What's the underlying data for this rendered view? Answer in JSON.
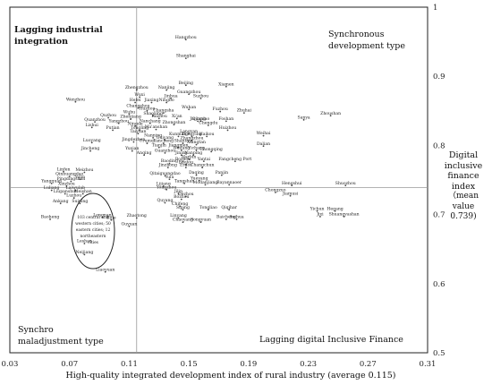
{
  "chart_data": {
    "type": "scatter",
    "x_label": "High-quality integrated development index of rural industry (average 0.115)",
    "y_label_lines": [
      "Digital",
      "inclusive",
      "finance",
      "index"
    ],
    "y_label_note_lines": [
      "（mean",
      "value",
      "0.739)"
    ],
    "x_ticks": [
      "0.03",
      "0.07",
      "0.11",
      "0.15",
      "0.19",
      "0.23",
      "0.27",
      "0.31"
    ],
    "y_ticks": [
      "1",
      "0.9",
      "0.8",
      "0.7",
      "0.6",
      "0.5"
    ],
    "xlim": [
      0.03,
      0.31
    ],
    "ylim": [
      0.5,
      1.0
    ],
    "x_mean": 0.115,
    "y_mean": 0.739,
    "quadrants": {
      "top_left": [
        "Lagging industrial",
        "integration"
      ],
      "top_right": [
        "Synchronous",
        "development type"
      ],
      "bottom_left": [
        "Synchro",
        "maladjustment type"
      ],
      "bottom_right": [
        "Lagging digital Inclusive Finance"
      ]
    },
    "ellipse_note_lines": [
      "103 central and",
      "western cities; 50",
      "eastern cities; 12",
      "northeastern",
      "cities"
    ],
    "points": [
      {
        "name": "Hangzhou",
        "x": 0.148,
        "y": 0.953
      },
      {
        "name": "Shanghai",
        "x": 0.148,
        "y": 0.926
      },
      {
        "name": "Beijing",
        "x": 0.148,
        "y": 0.887
      },
      {
        "name": "Xiamen",
        "x": 0.175,
        "y": 0.885
      },
      {
        "name": "Nanjing",
        "x": 0.135,
        "y": 0.88
      },
      {
        "name": "Zhengzhou",
        "x": 0.115,
        "y": 0.88
      },
      {
        "name": "Guangzhou",
        "x": 0.15,
        "y": 0.874
      },
      {
        "name": "Wuxi",
        "x": 0.117,
        "y": 0.87
      },
      {
        "name": "Jinhua",
        "x": 0.138,
        "y": 0.868
      },
      {
        "name": "Suzhou",
        "x": 0.158,
        "y": 0.868
      },
      {
        "name": "Wenzhou",
        "x": 0.074,
        "y": 0.863
      },
      {
        "name": "Hefei",
        "x": 0.114,
        "y": 0.862
      },
      {
        "name": "Jiaxing",
        "x": 0.125,
        "y": 0.862
      },
      {
        "name": "Ningbo",
        "x": 0.135,
        "y": 0.862
      },
      {
        "name": "Changzhou",
        "x": 0.116,
        "y": 0.854
      },
      {
        "name": "Wuhan",
        "x": 0.15,
        "y": 0.852
      },
      {
        "name": "Fuzhou",
        "x": 0.171,
        "y": 0.849
      },
      {
        "name": "Zhuhai",
        "x": 0.187,
        "y": 0.847
      },
      {
        "name": "Huzhou",
        "x": 0.122,
        "y": 0.85
      },
      {
        "name": "Wuhu",
        "x": 0.11,
        "y": 0.845
      },
      {
        "name": "Changsha",
        "x": 0.133,
        "y": 0.847
      },
      {
        "name": "Shaoxing",
        "x": 0.126,
        "y": 0.843
      },
      {
        "name": "Zhoushan",
        "x": 0.245,
        "y": 0.843
      },
      {
        "name": "Sanya",
        "x": 0.227,
        "y": 0.837
      },
      {
        "name": "Quzhou",
        "x": 0.096,
        "y": 0.84
      },
      {
        "name": "Zhenjiang",
        "x": 0.111,
        "y": 0.838
      },
      {
        "name": "Taizhou",
        "x": 0.13,
        "y": 0.839
      },
      {
        "name": "Xi'an",
        "x": 0.142,
        "y": 0.839
      },
      {
        "name": "Jiujiang",
        "x": 0.156,
        "y": 0.835
      },
      {
        "name": "Qingdao",
        "x": 0.158,
        "y": 0.835
      },
      {
        "name": "Foshan",
        "x": 0.175,
        "y": 0.835
      },
      {
        "name": "Quanzhou",
        "x": 0.087,
        "y": 0.834
      },
      {
        "name": "Yangzhou",
        "x": 0.103,
        "y": 0.832
      },
      {
        "name": "Nanchang",
        "x": 0.124,
        "y": 0.832
      },
      {
        "name": "Zhongshan",
        "x": 0.14,
        "y": 0.83
      },
      {
        "name": "Chengdu",
        "x": 0.163,
        "y": 0.829
      },
      {
        "name": "Lishui",
        "x": 0.085,
        "y": 0.826
      },
      {
        "name": "Ningde",
        "x": 0.114,
        "y": 0.828
      },
      {
        "name": "Putian",
        "x": 0.099,
        "y": 0.822
      },
      {
        "name": "Tongling",
        "x": 0.117,
        "y": 0.822
      },
      {
        "name": "Ma'anshan",
        "x": 0.128,
        "y": 0.823
      },
      {
        "name": "Huizhou",
        "x": 0.176,
        "y": 0.822
      },
      {
        "name": "Taiyuan",
        "x": 0.116,
        "y": 0.817
      },
      {
        "name": "Langyan",
        "x": 0.15,
        "y": 0.817
      },
      {
        "name": "Weihai",
        "x": 0.2,
        "y": 0.814
      },
      {
        "name": "Kunming",
        "x": 0.143,
        "y": 0.813
      },
      {
        "name": "Dongying",
        "x": 0.152,
        "y": 0.813
      },
      {
        "name": "Haikou",
        "x": 0.162,
        "y": 0.813
      },
      {
        "name": "Nanning",
        "x": 0.126,
        "y": 0.811
      },
      {
        "name": "Guiyang",
        "x": 0.134,
        "y": 0.808
      },
      {
        "name": "Zhangzhou",
        "x": 0.152,
        "y": 0.807
      },
      {
        "name": "Jingdezhen",
        "x": 0.113,
        "y": 0.805
      },
      {
        "name": "Luoyang",
        "x": 0.085,
        "y": 0.804
      },
      {
        "name": "Urumqi",
        "x": 0.122,
        "y": 0.803
      },
      {
        "name": "Yancheng",
        "x": 0.133,
        "y": 0.803
      },
      {
        "name": "Shantou",
        "x": 0.146,
        "y": 0.803
      },
      {
        "name": "Xiangtan",
        "x": 0.155,
        "y": 0.801
      },
      {
        "name": "Dalian",
        "x": 0.2,
        "y": 0.799
      },
      {
        "name": "Tianjin",
        "x": 0.13,
        "y": 0.797
      },
      {
        "name": "Jiangmen",
        "x": 0.143,
        "y": 0.797
      },
      {
        "name": "Yuxian",
        "x": 0.112,
        "y": 0.792
      },
      {
        "name": "Jincheng",
        "x": 0.084,
        "y": 0.792
      },
      {
        "name": "Weifang",
        "x": 0.145,
        "y": 0.793
      },
      {
        "name": "Yichang",
        "x": 0.155,
        "y": 0.793
      },
      {
        "name": "Chongqing",
        "x": 0.165,
        "y": 0.791
      },
      {
        "name": "Guanzhou",
        "x": 0.134,
        "y": 0.789
      },
      {
        "name": "Jining",
        "x": 0.145,
        "y": 0.786
      },
      {
        "name": "Nanping",
        "x": 0.153,
        "y": 0.786
      },
      {
        "name": "Anqing",
        "x": 0.12,
        "y": 0.786
      },
      {
        "name": "Harbin",
        "x": 0.15,
        "y": 0.78
      },
      {
        "name": "Baoding",
        "x": 0.137,
        "y": 0.774
      },
      {
        "name": "Bozhou",
        "x": 0.146,
        "y": 0.777
      },
      {
        "name": "Yantai",
        "x": 0.16,
        "y": 0.777
      },
      {
        "name": "Fangcheng Port",
        "x": 0.181,
        "y": 0.777
      },
      {
        "name": "Baotou",
        "x": 0.148,
        "y": 0.772
      },
      {
        "name": "Jinzhong",
        "x": 0.136,
        "y": 0.768
      },
      {
        "name": "Erdos",
        "x": 0.148,
        "y": 0.768
      },
      {
        "name": "Changchun",
        "x": 0.159,
        "y": 0.768
      },
      {
        "name": "Linfen",
        "x": 0.066,
        "y": 0.762
      },
      {
        "name": "Meizhou",
        "x": 0.08,
        "y": 0.761
      },
      {
        "name": "Qitaiguangdao",
        "x": 0.134,
        "y": 0.756
      },
      {
        "name": "Daqing",
        "x": 0.155,
        "y": 0.757
      },
      {
        "name": "Panjin",
        "x": 0.172,
        "y": 0.757
      },
      {
        "name": "Qinhuangdao",
        "x": 0.07,
        "y": 0.755
      },
      {
        "name": "Yulin",
        "x": 0.077,
        "y": 0.751
      },
      {
        "name": "Yulu",
        "x": 0.137,
        "y": 0.751
      },
      {
        "name": "Yueyang",
        "x": 0.157,
        "y": 0.749
      },
      {
        "name": "Pingdingshan",
        "x": 0.071,
        "y": 0.748
      },
      {
        "name": "Yangquan",
        "x": 0.058,
        "y": 0.745
      },
      {
        "name": "Tangshan",
        "x": 0.147,
        "y": 0.745
      },
      {
        "name": "Modanjiang",
        "x": 0.161,
        "y": 0.743
      },
      {
        "name": "Bayannaoer",
        "x": 0.177,
        "y": 0.743
      },
      {
        "name": "Hengshui",
        "x": 0.219,
        "y": 0.742
      },
      {
        "name": "Shuozhou",
        "x": 0.255,
        "y": 0.742
      },
      {
        "name": "Xinzhou",
        "x": 0.068,
        "y": 0.741
      },
      {
        "name": "Lijiang",
        "x": 0.133,
        "y": 0.741
      },
      {
        "name": "Yongzhou",
        "x": 0.135,
        "y": 0.736
      },
      {
        "name": "Luliang",
        "x": 0.058,
        "y": 0.735
      },
      {
        "name": "Laiwulab",
        "x": 0.074,
        "y": 0.735
      },
      {
        "name": "Liupanshui",
        "x": 0.067,
        "y": 0.73
      },
      {
        "name": "Meishan",
        "x": 0.079,
        "y": 0.73
      },
      {
        "name": "Jilin",
        "x": 0.143,
        "y": 0.73
      },
      {
        "name": "Dezhou",
        "x": 0.148,
        "y": 0.726
      },
      {
        "name": "Chongzuo",
        "x": 0.208,
        "y": 0.732
      },
      {
        "name": "Jiamusi",
        "x": 0.218,
        "y": 0.727
      },
      {
        "name": "Luzhou",
        "x": 0.073,
        "y": 0.724
      },
      {
        "name": "Bozhou2",
        "x": 0.145,
        "y": 0.722
      },
      {
        "name": "Quyang",
        "x": 0.134,
        "y": 0.717
      },
      {
        "name": "Ankang",
        "x": 0.064,
        "y": 0.716
      },
      {
        "name": "Suining",
        "x": 0.077,
        "y": 0.716
      },
      {
        "name": "Chifeng",
        "x": 0.144,
        "y": 0.712
      },
      {
        "name": "Siping",
        "x": 0.146,
        "y": 0.707
      },
      {
        "name": "Tongliao",
        "x": 0.163,
        "y": 0.707
      },
      {
        "name": "Qiqihar",
        "x": 0.177,
        "y": 0.707
      },
      {
        "name": "Yichun",
        "x": 0.236,
        "y": 0.705
      },
      {
        "name": "Hegang",
        "x": 0.248,
        "y": 0.705
      },
      {
        "name": "Jixi",
        "x": 0.238,
        "y": 0.697
      },
      {
        "name": "Shuangyashan",
        "x": 0.254,
        "y": 0.697
      },
      {
        "name": "Longnan",
        "x": 0.092,
        "y": 0.696
      },
      {
        "name": "Bijie",
        "x": 0.098,
        "y": 0.692
      },
      {
        "name": "Zhaotong",
        "x": 0.115,
        "y": 0.695
      },
      {
        "name": "Linyang",
        "x": 0.143,
        "y": 0.695
      },
      {
        "name": "Baicheng",
        "x": 0.175,
        "y": 0.693
      },
      {
        "name": "Suihua",
        "x": 0.182,
        "y": 0.693
      },
      {
        "name": "Baoheng",
        "x": 0.057,
        "y": 0.693
      },
      {
        "name": "Chaoyang",
        "x": 0.146,
        "y": 0.689
      },
      {
        "name": "Songyuan",
        "x": 0.158,
        "y": 0.689
      },
      {
        "name": "Guyuan",
        "x": 0.11,
        "y": 0.683
      },
      {
        "name": "Leshan",
        "x": 0.08,
        "y": 0.658
      },
      {
        "name": "Neijiang",
        "x": 0.08,
        "y": 0.642
      },
      {
        "name": "Liaoyuan",
        "x": 0.094,
        "y": 0.617
      }
    ]
  }
}
